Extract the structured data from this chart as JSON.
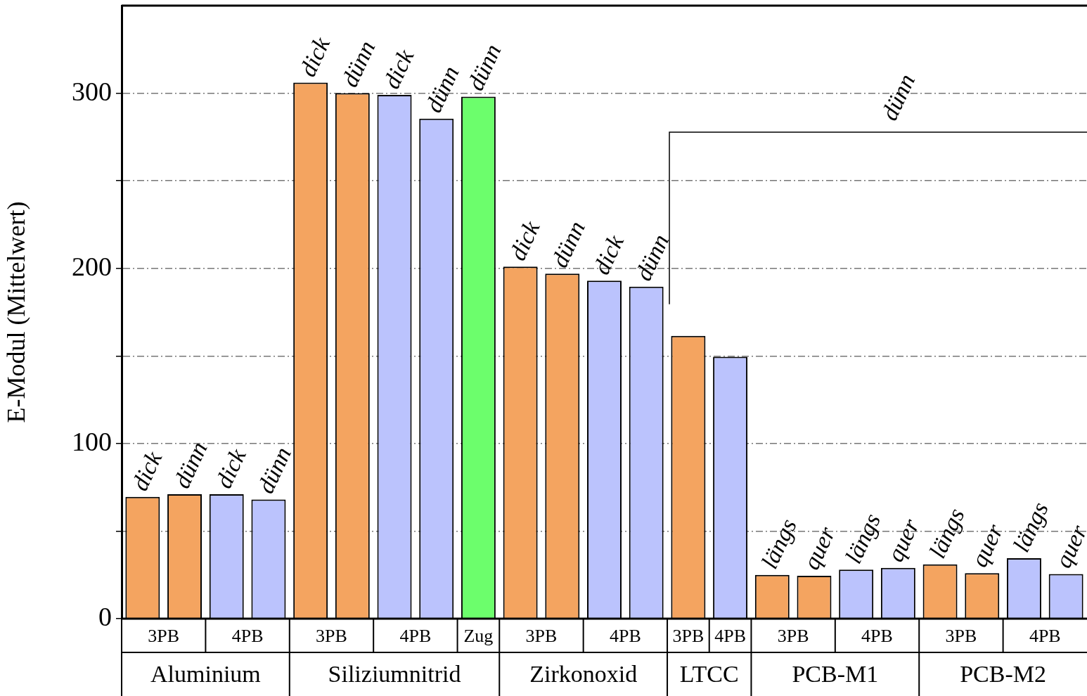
{
  "chart_data": {
    "type": "bar",
    "ylabel": "E-Modul (Mittelwert)",
    "categories": [
      "3PB",
      null,
      "4PB",
      null,
      "3PB",
      null,
      "4PB",
      null,
      "Zug",
      "3PB",
      null,
      "4PB",
      null,
      "3PB",
      "4PB",
      "3PB",
      null,
      "4PB",
      null,
      "3PB",
      null,
      "4PB",
      null
    ],
    "series": [
      {
        "name": "Aluminium",
        "values": [
          69.5,
          71,
          71,
          68,
          null,
          null,
          null,
          null,
          null,
          null,
          null,
          null,
          null,
          null,
          null,
          null,
          null,
          null,
          null,
          null,
          null,
          null,
          null
        ],
        "colors": [
          "#f4a460",
          "#f4a460",
          "#bbc3fd",
          "#bbc3fd",
          null,
          null,
          null,
          null,
          null,
          null,
          null,
          null,
          null,
          null,
          null,
          null,
          null,
          null,
          null,
          null,
          null,
          null,
          null
        ],
        "value_labels": [
          "dick",
          "dünn",
          "dick",
          "dünn",
          null,
          null,
          null,
          null,
          null,
          null,
          null,
          null,
          null,
          null,
          null,
          null,
          null,
          null,
          null,
          null,
          null,
          null,
          null
        ]
      },
      {
        "name": "Siliziumnitrid",
        "values": [
          null,
          null,
          null,
          null,
          306,
          300,
          299,
          285.5,
          298,
          null,
          null,
          null,
          null,
          null,
          null,
          null,
          null,
          null,
          null,
          null,
          null,
          null,
          null
        ],
        "colors": [
          null,
          null,
          null,
          null,
          "#f4a460",
          "#f4a460",
          "#bbc3fd",
          "#bbc3fd",
          "#6cfe6c",
          null,
          null,
          null,
          null,
          null,
          null,
          null,
          null,
          null,
          null,
          null,
          null,
          null,
          null
        ],
        "value_labels": [
          null,
          null,
          null,
          null,
          "dick",
          "dünn",
          "dick",
          "dünn",
          "dünn",
          null,
          null,
          null,
          null,
          null,
          null,
          null,
          null,
          null,
          null,
          null,
          null,
          null,
          null
        ]
      },
      {
        "name": "Zirkonoxid",
        "values": [
          null,
          null,
          null,
          null,
          null,
          null,
          null,
          null,
          null,
          201,
          197,
          193,
          189.5,
          null,
          null,
          null,
          null,
          null,
          null,
          null,
          null,
          null,
          null
        ],
        "colors": [
          null,
          null,
          null,
          null,
          null,
          null,
          null,
          null,
          null,
          "#f4a460",
          "#f4a460",
          "#bbc3fd",
          "#bbc3fd",
          null,
          null,
          null,
          null,
          null,
          null,
          null,
          null,
          null,
          null
        ],
        "value_labels": [
          null,
          null,
          null,
          null,
          null,
          null,
          null,
          null,
          null,
          "dick",
          "dünn",
          "dick",
          "dünn",
          null,
          null,
          null,
          null,
          null,
          null,
          null,
          null,
          null,
          null
        ]
      },
      {
        "name": "LTCC",
        "values": [
          null,
          null,
          null,
          null,
          null,
          null,
          null,
          null,
          null,
          null,
          null,
          null,
          null,
          161.5,
          149.5,
          null,
          null,
          null,
          null,
          null,
          null,
          null,
          null
        ],
        "colors": [
          null,
          null,
          null,
          null,
          null,
          null,
          null,
          null,
          null,
          null,
          null,
          null,
          null,
          "#f4a460",
          "#bbc3fd",
          null,
          null,
          null,
          null,
          null,
          null,
          null,
          null
        ]
      },
      {
        "name": "PCB-M1",
        "values": [
          null,
          null,
          null,
          null,
          null,
          null,
          null,
          null,
          null,
          null,
          null,
          null,
          null,
          null,
          null,
          25,
          24.5,
          28,
          29,
          null,
          null,
          null,
          null
        ],
        "colors": [
          null,
          null,
          null,
          null,
          null,
          null,
          null,
          null,
          null,
          null,
          null,
          null,
          null,
          null,
          null,
          "#f4a460",
          "#f4a460",
          "#bbc3fd",
          "#bbc3fd",
          null,
          null,
          null,
          null
        ],
        "value_labels": [
          null,
          null,
          null,
          null,
          null,
          null,
          null,
          null,
          null,
          null,
          null,
          null,
          null,
          null,
          null,
          "längs",
          "quer",
          "längs",
          "quer",
          null,
          null,
          null,
          null
        ]
      },
      {
        "name": "PCB-M2",
        "values": [
          null,
          null,
          null,
          null,
          null,
          null,
          null,
          null,
          null,
          null,
          null,
          null,
          null,
          null,
          null,
          null,
          null,
          null,
          null,
          31,
          26,
          34.5,
          25.5
        ],
        "colors": [
          null,
          null,
          null,
          null,
          null,
          null,
          null,
          null,
          null,
          null,
          null,
          null,
          null,
          null,
          null,
          null,
          null,
          null,
          null,
          "#f4a460",
          "#f4a460",
          "#bbc3fd",
          "#bbc3fd"
        ],
        "value_labels": [
          null,
          null,
          null,
          null,
          null,
          null,
          null,
          null,
          null,
          null,
          null,
          null,
          null,
          null,
          null,
          null,
          null,
          null,
          null,
          "längs",
          "quer",
          "längs",
          "quer"
        ]
      }
    ],
    "annotations": [
      "dünn"
    ],
    "ylim": [
      0,
      350
    ],
    "yticks": [
      0,
      {
        "value": 50,
        "label": null
      },
      100,
      {
        "value": 150,
        "label": null
      },
      200,
      {
        "value": 250,
        "label": null
      },
      300
    ],
    "grid": "y",
    "legend": false
  }
}
